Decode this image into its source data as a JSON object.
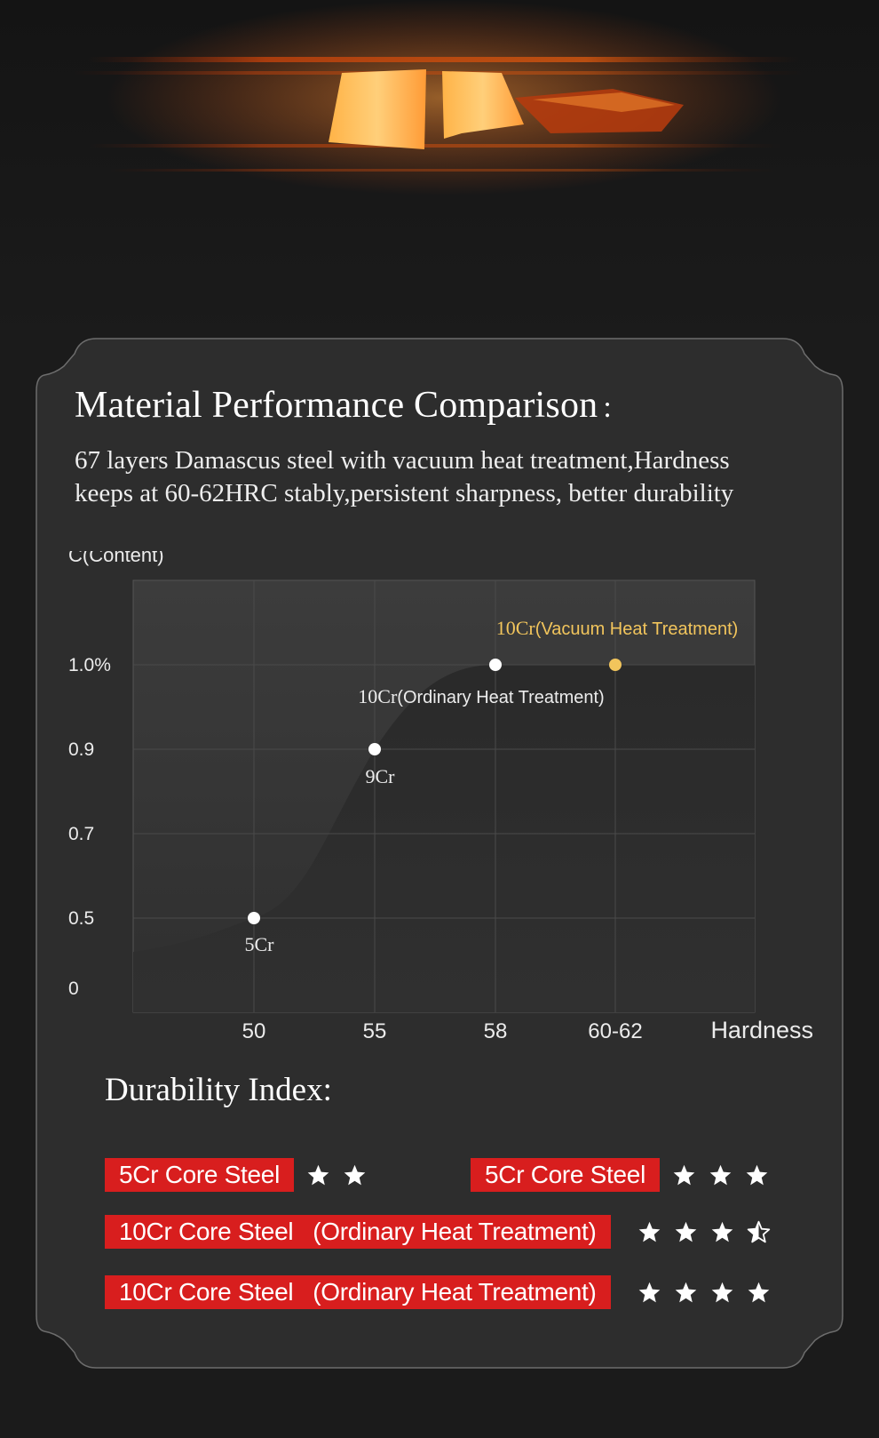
{
  "title": "Material Performance Comparison",
  "title_colon": ":",
  "subtitle_lines": [
    "67 layers Damascus steel with vacuum heat treatment,Hardness",
    "keeps at 60-62HRC stably,persistent sharpness, better durability"
  ],
  "chart_data": {
    "type": "line",
    "ylabel": "C(Content)",
    "xlabel": "Hardness",
    "x_categories": [
      "50",
      "55",
      "58",
      "60-62"
    ],
    "y_ticks": [
      "1.0%",
      "0.9",
      "0.7",
      "0.5",
      "0"
    ],
    "points": [
      {
        "label": "5Cr",
        "x": "50",
        "y": 0.5,
        "color": "#ffffff"
      },
      {
        "label": "9Cr",
        "x": "55",
        "y": 0.9,
        "color": "#ffffff"
      },
      {
        "label_main": "10Cr",
        "label_paren": "(Ordinary Heat Treatment)",
        "x": "58",
        "y": 1.0,
        "color": "#ffffff"
      },
      {
        "label_main": "10Cr",
        "label_paren": "(Vacuum Heat Treatment)",
        "x": "60-62",
        "y": 1.0,
        "color": "#f2c55c"
      }
    ],
    "grid": true
  },
  "durability": {
    "title": "Durability Index:",
    "items": [
      {
        "label": "5Cr Core Steel",
        "stars": 2
      },
      {
        "label": "5Cr Core Steel",
        "stars": 3
      },
      {
        "label_a": "10Cr Core Steel",
        "label_b": "(Ordinary Heat Treatment)",
        "stars": 3.5
      },
      {
        "label_a": "10Cr Core Steel",
        "label_b": "(Ordinary Heat Treatment)",
        "stars": 4
      }
    ]
  },
  "colors": {
    "accent_red": "#d81e1e",
    "vacuum_gold": "#f2c55c"
  }
}
